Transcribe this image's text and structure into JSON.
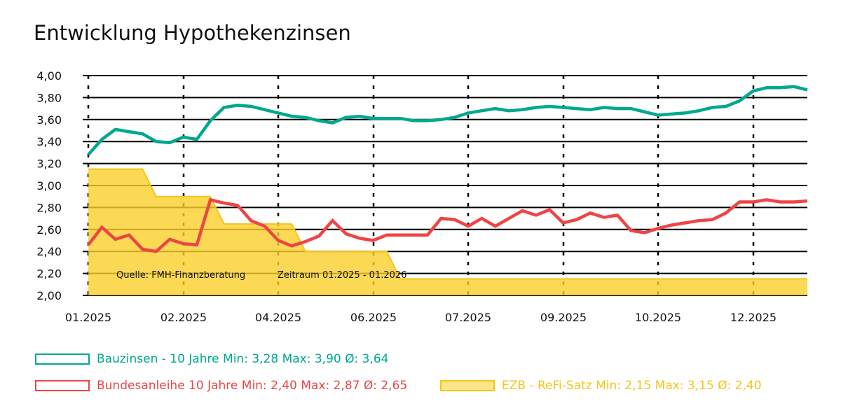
{
  "chart_data": {
    "type": "line",
    "title": "Entwicklung Hypothekenzinsen",
    "xlabel": "",
    "ylabel": "",
    "ylim": [
      2.0,
      4.0
    ],
    "yticks": [
      "2,00",
      "2,20",
      "2,40",
      "2,60",
      "2,80",
      "3,00",
      "3,20",
      "3,40",
      "3,60",
      "3,80",
      "4,00"
    ],
    "xticks": [
      "01.2025",
      "02.2025",
      "04.2025",
      "06.2025",
      "07.2025",
      "09.2025",
      "10.2025",
      "12.2025"
    ],
    "xtick_positions": [
      0,
      7,
      14,
      21,
      28,
      35,
      42,
      49
    ],
    "grid": true,
    "legend_placement": "bottom",
    "annotations": [
      "Quelle: FMH-Finanzberatung",
      "Zeitraum 01.2025 - 01.2026"
    ],
    "series": [
      {
        "name": "Bauzinsen - 10 Jahre",
        "legend": "Bauzinsen - 10 Jahre Min: 3,28 Max: 3,90 Ø: 3,64",
        "type": "line",
        "color": "#00a88f",
        "values": [
          3.28,
          3.42,
          3.51,
          3.49,
          3.47,
          3.4,
          3.39,
          3.44,
          3.42,
          3.59,
          3.71,
          3.73,
          3.72,
          3.69,
          3.66,
          3.63,
          3.62,
          3.59,
          3.57,
          3.62,
          3.63,
          3.61,
          3.61,
          3.61,
          3.59,
          3.59,
          3.6,
          3.62,
          3.66,
          3.68,
          3.7,
          3.68,
          3.69,
          3.71,
          3.72,
          3.71,
          3.7,
          3.69,
          3.71,
          3.7,
          3.7,
          3.67,
          3.64,
          3.65,
          3.66,
          3.68,
          3.71,
          3.72,
          3.77,
          3.86,
          3.89,
          3.89,
          3.9,
          3.87
        ]
      },
      {
        "name": "Bundesanleihe 10 Jahre",
        "legend": "Bundesanleihe 10 Jahre Min: 2,40 Max: 2,87 Ø: 2,65",
        "type": "line",
        "color": "#ef4444",
        "values": [
          2.46,
          2.62,
          2.51,
          2.55,
          2.42,
          2.4,
          2.51,
          2.47,
          2.46,
          2.87,
          2.84,
          2.82,
          2.68,
          2.63,
          2.5,
          2.45,
          2.49,
          2.54,
          2.68,
          2.56,
          2.52,
          2.5,
          2.55,
          2.55,
          2.55,
          2.55,
          2.7,
          2.69,
          2.63,
          2.7,
          2.63,
          2.7,
          2.77,
          2.73,
          2.78,
          2.66,
          2.69,
          2.75,
          2.71,
          2.73,
          2.59,
          2.57,
          2.61,
          2.64,
          2.66,
          2.68,
          2.69,
          2.75,
          2.85,
          2.85,
          2.87,
          2.85,
          2.85,
          2.86
        ]
      },
      {
        "name": "EZB - ReFi-Satz",
        "legend": "EZB - ReFi-Satz Min: 2,15 Max: 3,15 Ø: 2,40",
        "type": "area",
        "color": "#f5c518",
        "values": [
          3.15,
          3.15,
          3.15,
          3.15,
          3.15,
          2.9,
          2.9,
          2.9,
          2.9,
          2.9,
          2.65,
          2.65,
          2.65,
          2.65,
          2.65,
          2.65,
          2.4,
          2.4,
          2.4,
          2.4,
          2.4,
          2.4,
          2.4,
          2.15,
          2.15,
          2.15,
          2.15,
          2.15,
          2.15,
          2.15,
          2.15,
          2.15,
          2.15,
          2.15,
          2.15,
          2.15,
          2.15,
          2.15,
          2.15,
          2.15,
          2.15,
          2.15,
          2.15,
          2.15,
          2.15,
          2.15,
          2.15,
          2.15,
          2.15,
          2.15,
          2.15,
          2.15,
          2.15,
          2.15
        ]
      }
    ]
  }
}
